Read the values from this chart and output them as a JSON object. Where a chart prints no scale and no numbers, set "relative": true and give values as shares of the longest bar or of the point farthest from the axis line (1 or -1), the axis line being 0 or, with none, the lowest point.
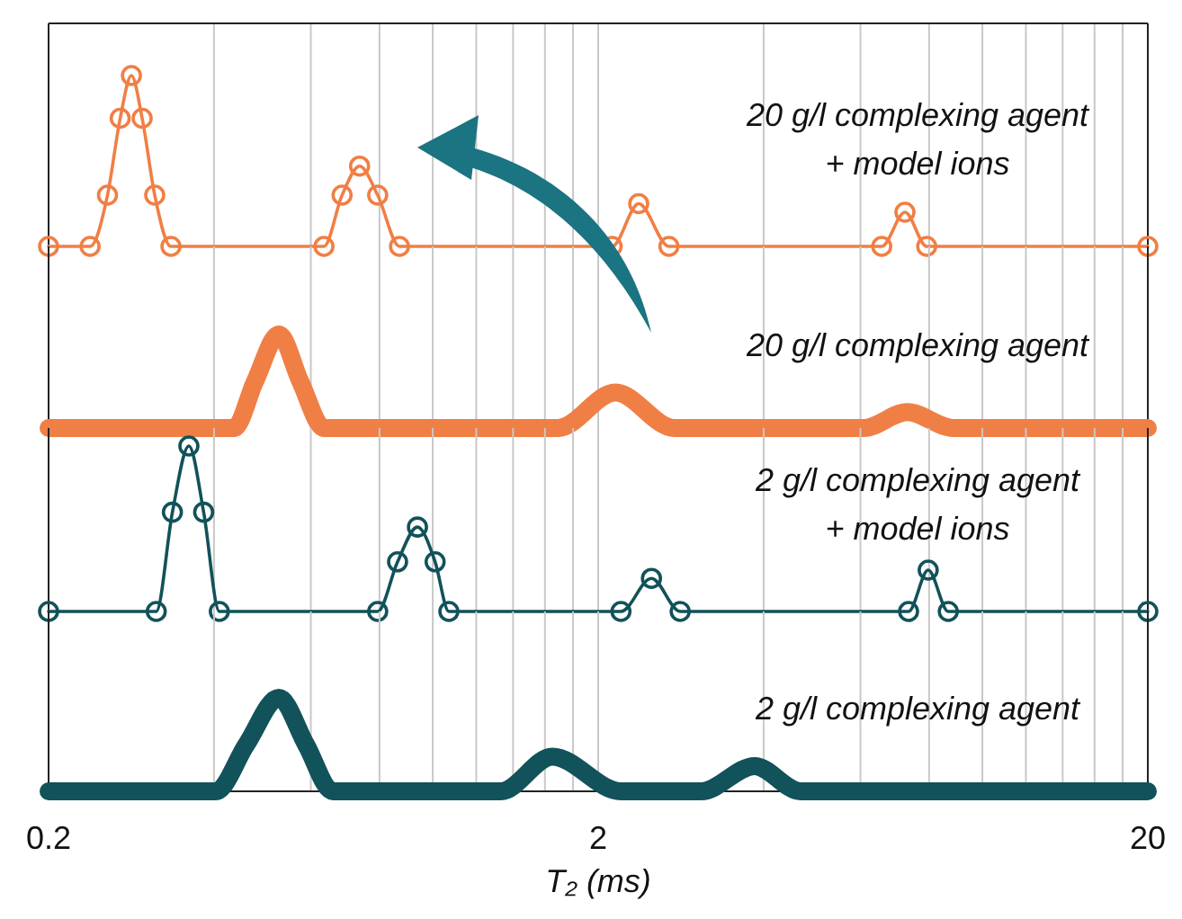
{
  "chart_data": [
    {
      "type": "line",
      "log": "x",
      "relative": true,
      "xlim": [
        0.2,
        20
      ],
      "xticks": [
        0.2,
        {
          "value": 0.4,
          "label": null
        },
        {
          "value": 0.6,
          "label": null
        },
        {
          "value": 0.8,
          "label": null
        },
        {
          "value": 1,
          "label": null
        },
        {
          "value": 1.2,
          "label": null
        },
        {
          "value": 1.4,
          "label": null
        },
        {
          "value": 1.6,
          "label": null
        },
        {
          "value": 1.8,
          "label": null
        },
        2,
        {
          "value": 4,
          "label": null
        },
        {
          "value": 6,
          "label": null
        },
        {
          "value": 8,
          "label": null
        },
        {
          "value": 10,
          "label": null
        },
        {
          "value": 12,
          "label": null
        },
        {
          "value": 14,
          "label": null
        },
        {
          "value": 16,
          "label": null
        },
        {
          "value": 18,
          "label": null
        },
        20
      ],
      "grid": "x",
      "tick_labels": false,
      "marker": "circle",
      "series": [
        {
          "name": "20 g/l complexing agent + model ions",
          "color": "#f07f45",
          "x": [
            0.2,
            0.238,
            0.256,
            0.27,
            0.283,
            0.296,
            0.312,
            0.334,
            0.634,
            0.684,
            0.736,
            0.794,
            0.87,
            2.12,
            2.37,
            2.69,
            6.56,
            7.23,
            7.92,
            20
          ],
          "values": [
            0,
            0,
            0.3,
            0.75,
            1,
            0.75,
            0.3,
            0,
            0,
            0.3,
            0.47,
            0.3,
            0,
            0,
            0.25,
            0,
            0,
            0.2,
            0,
            0
          ]
        }
      ]
    },
    {
      "type": "line",
      "log": "x",
      "relative": true,
      "xlim": [
        0.2,
        20
      ],
      "xticks": [
        0.2,
        {
          "value": 0.4,
          "label": null
        },
        {
          "value": 0.6,
          "label": null
        },
        {
          "value": 0.8,
          "label": null
        },
        {
          "value": 1,
          "label": null
        },
        {
          "value": 1.2,
          "label": null
        },
        {
          "value": 1.4,
          "label": null
        },
        {
          "value": 1.6,
          "label": null
        },
        {
          "value": 1.8,
          "label": null
        },
        2,
        {
          "value": 4,
          "label": null
        },
        {
          "value": 6,
          "label": null
        },
        {
          "value": 8,
          "label": null
        },
        {
          "value": 10,
          "label": null
        },
        {
          "value": 12,
          "label": null
        },
        {
          "value": 14,
          "label": null
        },
        {
          "value": 16,
          "label": null
        },
        {
          "value": 18,
          "label": null
        },
        20
      ],
      "grid": "x",
      "tick_labels": false,
      "series": [
        {
          "name": "20 g/l complexing agent",
          "color": "#f07f45",
          "x": [
            0.2,
            0.435,
            0.475,
            0.525,
            0.574,
            0.634,
            1.69,
            2.15,
            2.75,
            6.08,
            7.3,
            8.86,
            20
          ],
          "values": [
            0,
            0,
            0.5,
            1,
            0.5,
            0,
            0,
            0.38,
            0,
            0,
            0.17,
            0,
            0
          ]
        }
      ]
    },
    {
      "type": "line",
      "log": "x",
      "relative": true,
      "xlim": [
        0.2,
        20
      ],
      "xticks": [
        0.2,
        {
          "value": 0.4,
          "label": null
        },
        {
          "value": 0.6,
          "label": null
        },
        {
          "value": 0.8,
          "label": null
        },
        {
          "value": 1,
          "label": null
        },
        {
          "value": 1.2,
          "label": null
        },
        {
          "value": 1.4,
          "label": null
        },
        {
          "value": 1.6,
          "label": null
        },
        {
          "value": 1.8,
          "label": null
        },
        2,
        {
          "value": 4,
          "label": null
        },
        {
          "value": 6,
          "label": null
        },
        {
          "value": 8,
          "label": null
        },
        {
          "value": 10,
          "label": null
        },
        {
          "value": 12,
          "label": null
        },
        {
          "value": 14,
          "label": null
        },
        {
          "value": 16,
          "label": null
        },
        {
          "value": 18,
          "label": null
        },
        20
      ],
      "grid": "x",
      "tick_labels": false,
      "marker": "circle",
      "series": [
        {
          "name": "2 g/l complexing agent + model ions",
          "color": "#12525a",
          "x": [
            0.2,
            0.314,
            0.336,
            0.36,
            0.383,
            0.409,
            0.794,
            0.863,
            0.938,
            1.01,
            1.07,
            2.2,
            2.5,
            2.82,
            7.34,
            7.97,
            8.67,
            20
          ],
          "values": [
            0,
            0,
            0.6,
            1,
            0.6,
            0,
            0,
            0.3,
            0.51,
            0.3,
            0,
            0,
            0.2,
            0,
            0,
            0.25,
            0,
            0
          ]
        }
      ]
    },
    {
      "type": "line",
      "log": "x",
      "relative": true,
      "xlim": [
        0.2,
        20
      ],
      "xticks": [
        0.2,
        {
          "value": 0.4,
          "label": null
        },
        {
          "value": 0.6,
          "label": null
        },
        {
          "value": 0.8,
          "label": null
        },
        {
          "value": 1,
          "label": null
        },
        {
          "value": 1.2,
          "label": null
        },
        {
          "value": 1.4,
          "label": null
        },
        {
          "value": 1.6,
          "label": null
        },
        {
          "value": 1.8,
          "label": null
        },
        2,
        {
          "value": 4,
          "label": null
        },
        {
          "value": 6,
          "label": null
        },
        {
          "value": 8,
          "label": null
        },
        {
          "value": 10,
          "label": null
        },
        {
          "value": 12,
          "label": null
        },
        {
          "value": 14,
          "label": null
        },
        {
          "value": 16,
          "label": null
        },
        {
          "value": 18,
          "label": null
        },
        20
      ],
      "grid": "x",
      "tick_labels": "x",
      "xlabel": "T₂ (ms)",
      "series": [
        {
          "name": "2 g/l complexing agent",
          "color": "#12525a",
          "x": [
            0.2,
            0.403,
            0.458,
            0.525,
            0.588,
            0.658,
            1.33,
            1.65,
            2.2,
            3.08,
            3.85,
            4.67,
            20
          ],
          "values": [
            0,
            0,
            0.5,
            1,
            0.5,
            0,
            0,
            0.37,
            0,
            0,
            0.27,
            0,
            0
          ]
        }
      ]
    }
  ]
}
